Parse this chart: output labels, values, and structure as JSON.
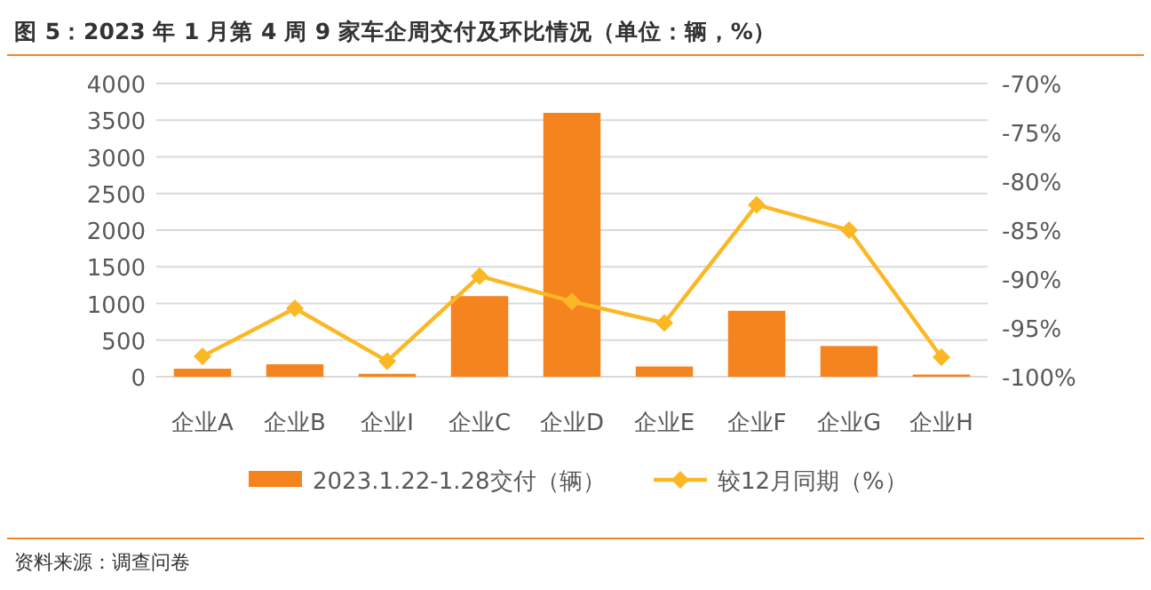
{
  "chart_data": {
    "type": "bar",
    "title": "图 5：2023 年 1 月第 4 周 9 家车企周交付及环比情况（单位：辆，%）",
    "categories": [
      "企业A",
      "企业B",
      "企业I",
      "企业C",
      "企业D",
      "企业E",
      "企业F",
      "企业G",
      "企业H"
    ],
    "series": [
      {
        "name": "2023.1.22-1.28交付（辆）",
        "color": "#f5841f",
        "values": [
          110,
          170,
          40,
          1100,
          3600,
          140,
          900,
          420,
          30
        ]
      },
      {
        "name": "较12月同期（%）",
        "color": "#fbb824",
        "type": "line",
        "axis": "y2",
        "values": [
          -97.9,
          -93.0,
          -98.4,
          -89.7,
          -92.3,
          -94.5,
          -82.4,
          -85.0,
          -98.0
        ]
      }
    ],
    "ylim": [
      0,
      4000
    ],
    "yticks": [
      0,
      500,
      1000,
      1500,
      2000,
      2500,
      3000,
      3500,
      4000
    ],
    "y2lim": [
      -100,
      -70
    ],
    "y2ticks": [
      {
        "value": -100,
        "label": "-100%"
      },
      {
        "value": -95,
        "label": "-95%"
      },
      {
        "value": -90,
        "label": "-90%"
      },
      {
        "value": -85,
        "label": "-85%"
      },
      {
        "value": -80,
        "label": "-80%"
      },
      {
        "value": -75,
        "label": "-75%"
      },
      {
        "value": -70,
        "label": "-70%"
      }
    ],
    "grid": "y",
    "legend": "bottom",
    "marker": "diamond",
    "line_style": "solid",
    "annotations": [
      "资料来源：调查问卷"
    ]
  }
}
